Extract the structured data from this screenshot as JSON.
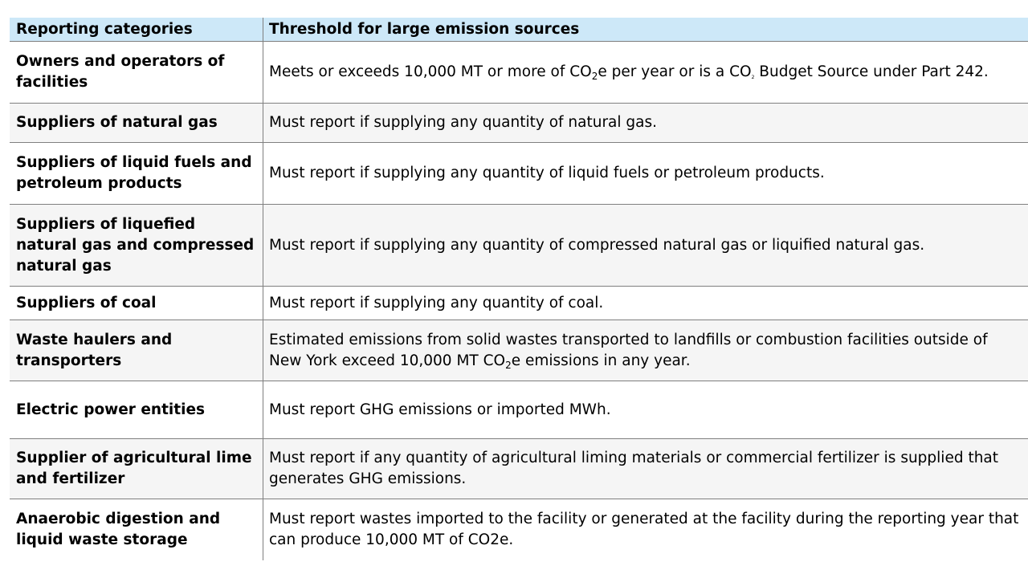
{
  "table": {
    "headers": {
      "category": "Reporting categories",
      "threshold": "Threshold for large emission sources"
    },
    "rows": [
      {
        "category": "Owners and operators of facilities",
        "threshold_a": "Meets or exceeds 10,000 MT or more of CO",
        "threshold_sub1": "2",
        "threshold_b": "e per year or is a CO",
        "threshold_sub2": "2",
        "threshold_c": " Budget Source under Part 242."
      },
      {
        "category": "Suppliers of natural gas",
        "threshold": "Must report if supplying any quantity of natural gas."
      },
      {
        "category": "Suppliers of liquid fuels and petroleum products",
        "threshold": "Must report if supplying any quantity of liquid fuels or petroleum products."
      },
      {
        "category": "Suppliers of liquefied natural gas and compressed natural gas",
        "threshold": "Must report if supplying any quantity of compressed natural gas or liquified natural gas."
      },
      {
        "category": "Suppliers of coal",
        "threshold": "Must report if supplying any quantity of coal."
      },
      {
        "category": "Waste haulers and transporters",
        "threshold_a": "Estimated emissions from solid wastes transported to landfills or combustion facilities outside of New York exceed 10,000 MT CO",
        "threshold_sub": "2",
        "threshold_b": "e emissions in any year."
      },
      {
        "category": "Electric power entities",
        "threshold": "Must report GHG emissions or imported MWh."
      },
      {
        "category": "Supplier of agricultural lime and fertilizer",
        "threshold": "Must report if any quantity of agricultural liming materials or commercial fertilizer is supplied that generates GHG emissions."
      },
      {
        "category": "Anaerobic digestion and liquid waste storage",
        "threshold": "Must report wastes imported to the facility or generated at the facility during the reporting year that can produce 10,000 MT of CO2e."
      }
    ]
  },
  "colors": {
    "header_bg": "#cde8f8",
    "alt_row_bg": "#f5f5f5",
    "border": "#7f7f7f"
  }
}
